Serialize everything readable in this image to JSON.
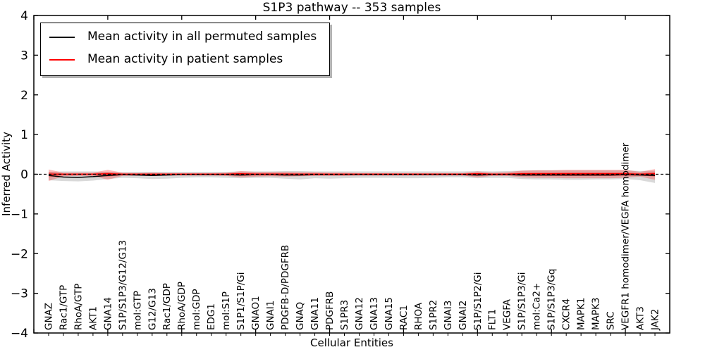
{
  "figure": {
    "title": "S1P3 pathway -- 353 samples",
    "background": "#ffffff",
    "frame_color": "#000000"
  },
  "legend": {
    "items": [
      {
        "label": "Mean activity in all permuted samples",
        "color": "#000000"
      },
      {
        "label": "Mean activity in patient samples",
        "color": "#ff0000"
      }
    ]
  },
  "chart_data": {
    "type": "line",
    "title": "S1P3 pathway -- 353 samples",
    "xlabel": "Cellular Entities",
    "ylabel": "Inferred Activity",
    "ylim": [
      -4,
      4
    ],
    "yticks": [
      -4,
      -3,
      -2,
      -1,
      0,
      1,
      2,
      3,
      4
    ],
    "x_major_tick_step": 5,
    "grid": false,
    "legend_position": "upper left",
    "categories": [
      "GNAZ",
      "Rac1/GTP",
      "RhoA/GTP",
      "AKT1",
      "GNA14",
      "S1P/S1P3/G12/G13",
      "mol:GTP",
      "G12/G13",
      "Rac1/GDP",
      "RhoA/GDP",
      "mol:GDP",
      "EDG1",
      "mol:S1P",
      "S1P1/S1P/Gi",
      "GNAO1",
      "GNAI1",
      "PDGFB-D/PDGFRB",
      "GNAQ",
      "GNA11",
      "PDGFRB",
      "S1PR3",
      "GNA12",
      "GNA13",
      "GNA15",
      "RAC1",
      "RHOA",
      "S1PR2",
      "GNAI3",
      "GNAI2",
      "S1P/S1P2/Gi",
      "FLT1",
      "VEGFA",
      "S1P/S1P3/Gi",
      "mol:Ca2+",
      "S1P/S1P3/Gq",
      "CXCR4",
      "MAPK1",
      "MAPK3",
      "SRC",
      "VEGFR1 homodimer/VEGFA homodimer",
      "AKT3",
      "JAK2"
    ],
    "series": [
      {
        "name": "Mean activity in all permuted samples",
        "color": "#000000",
        "width": 1.5,
        "values": [
          -0.03,
          -0.07,
          -0.08,
          -0.06,
          -0.03,
          -0.01,
          -0.02,
          -0.03,
          -0.02,
          -0.01,
          -0.01,
          -0.01,
          -0.01,
          -0.02,
          -0.01,
          -0.01,
          -0.02,
          -0.02,
          -0.01,
          -0.01,
          -0.01,
          -0.01,
          -0.01,
          -0.01,
          -0.01,
          -0.01,
          -0.01,
          -0.01,
          -0.01,
          -0.02,
          -0.01,
          -0.01,
          -0.02,
          -0.02,
          -0.02,
          -0.02,
          -0.02,
          -0.02,
          -0.02,
          -0.01,
          -0.02,
          -0.03
        ]
      },
      {
        "name": "Mean activity in patient samples",
        "color": "#ff0000",
        "width": 1.8,
        "values": [
          0,
          0,
          0,
          0,
          0.01,
          0,
          0,
          0,
          0,
          0,
          0,
          0,
          0,
          0.01,
          0,
          0,
          0,
          0,
          0,
          0,
          0,
          0,
          0,
          0,
          0,
          0,
          0,
          0,
          0,
          0.01,
          0,
          0,
          0.01,
          0.01,
          0.01,
          0.01,
          0.01,
          0.01,
          0.01,
          0.01,
          0,
          0.01
        ]
      }
    ],
    "bands": [
      {
        "name": "permuted-samples-std-band",
        "color": "rgba(120,120,120,0.28)",
        "low": [
          -0.15,
          -0.17,
          -0.18,
          -0.16,
          -0.12,
          -0.09,
          -0.1,
          -0.12,
          -0.11,
          -0.09,
          -0.08,
          -0.08,
          -0.09,
          -0.1,
          -0.09,
          -0.09,
          -0.11,
          -0.13,
          -0.1,
          -0.11,
          -0.1,
          -0.09,
          -0.09,
          -0.09,
          -0.1,
          -0.1,
          -0.09,
          -0.08,
          -0.08,
          -0.1,
          -0.09,
          -0.09,
          -0.12,
          -0.13,
          -0.13,
          -0.14,
          -0.14,
          -0.13,
          -0.13,
          -0.12,
          -0.15,
          -0.22
        ],
        "high": [
          0.06,
          0.07,
          0.07,
          0.07,
          0.06,
          0.05,
          0.06,
          0.06,
          0.06,
          0.06,
          0.06,
          0.06,
          0.06,
          0.07,
          0.07,
          0.07,
          0.08,
          0.08,
          0.07,
          0.07,
          0.07,
          0.07,
          0.07,
          0.07,
          0.07,
          0.07,
          0.07,
          0.07,
          0.07,
          0.08,
          0.07,
          0.08,
          0.09,
          0.1,
          0.1,
          0.1,
          0.1,
          0.1,
          0.1,
          0.1,
          0.08,
          0.09
        ]
      },
      {
        "name": "patient-samples-std-band",
        "color": "rgba(255,0,0,0.25)",
        "inner_scale": 0.45,
        "inner_color": "rgba(255,0,0,0.30)",
        "low": [
          -0.17,
          -0.05,
          -0.04,
          -0.04,
          -0.14,
          -0.04,
          -0.03,
          -0.04,
          -0.03,
          -0.03,
          -0.03,
          -0.03,
          -0.04,
          -0.08,
          -0.06,
          -0.05,
          -0.06,
          -0.05,
          -0.04,
          -0.04,
          -0.04,
          -0.03,
          -0.03,
          -0.03,
          -0.03,
          -0.03,
          -0.03,
          -0.03,
          -0.03,
          -0.08,
          -0.04,
          -0.04,
          -0.08,
          -0.09,
          -0.09,
          -0.1,
          -0.1,
          -0.1,
          -0.1,
          -0.09,
          -0.06,
          -0.14
        ],
        "high": [
          0.12,
          0.04,
          0.04,
          0.04,
          0.11,
          0.04,
          0.03,
          0.04,
          0.03,
          0.03,
          0.03,
          0.03,
          0.04,
          0.08,
          0.06,
          0.06,
          0.06,
          0.05,
          0.05,
          0.04,
          0.04,
          0.03,
          0.03,
          0.03,
          0.03,
          0.03,
          0.03,
          0.03,
          0.03,
          0.07,
          0.04,
          0.05,
          0.09,
          0.1,
          0.1,
          0.11,
          0.11,
          0.11,
          0.11,
          0.11,
          0.06,
          0.13
        ]
      }
    ],
    "zero_line": {
      "y": 0,
      "style": "dashed",
      "color": "#000000"
    }
  }
}
